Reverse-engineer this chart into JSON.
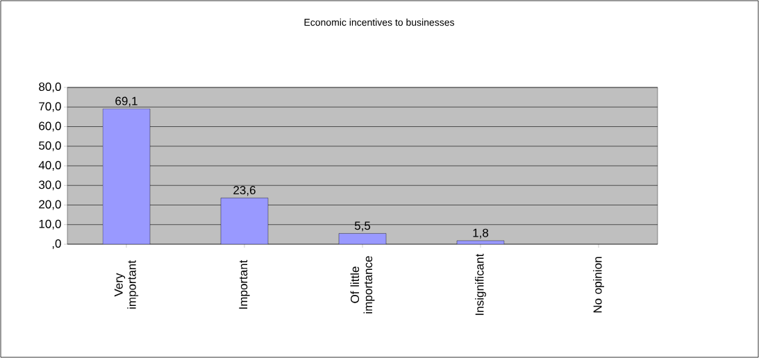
{
  "chart_data": {
    "type": "bar",
    "title": "Economic incentives to businesses",
    "categories": [
      "Very important",
      "Important",
      "Of little importance",
      "Insignificant",
      "No opinion"
    ],
    "values": [
      69.1,
      23.6,
      5.5,
      1.8,
      null
    ],
    "value_labels": [
      "69,1",
      "23,6",
      "5,5",
      "1,8",
      null
    ],
    "color": "#9999ff",
    "ylim": [
      0,
      80
    ],
    "yticks": [
      {
        "value": 0,
        "label": ",0"
      },
      {
        "value": 10,
        "label": "10,0"
      },
      {
        "value": 20,
        "label": "20,0"
      },
      {
        "value": 30,
        "label": "30,0"
      },
      {
        "value": 40,
        "label": "40,0"
      },
      {
        "value": 50,
        "label": "50,0"
      },
      {
        "value": 60,
        "label": "60,0"
      },
      {
        "value": 70,
        "label": "70,0"
      },
      {
        "value": 80,
        "label": "80,0"
      }
    ],
    "grid": "y"
  }
}
